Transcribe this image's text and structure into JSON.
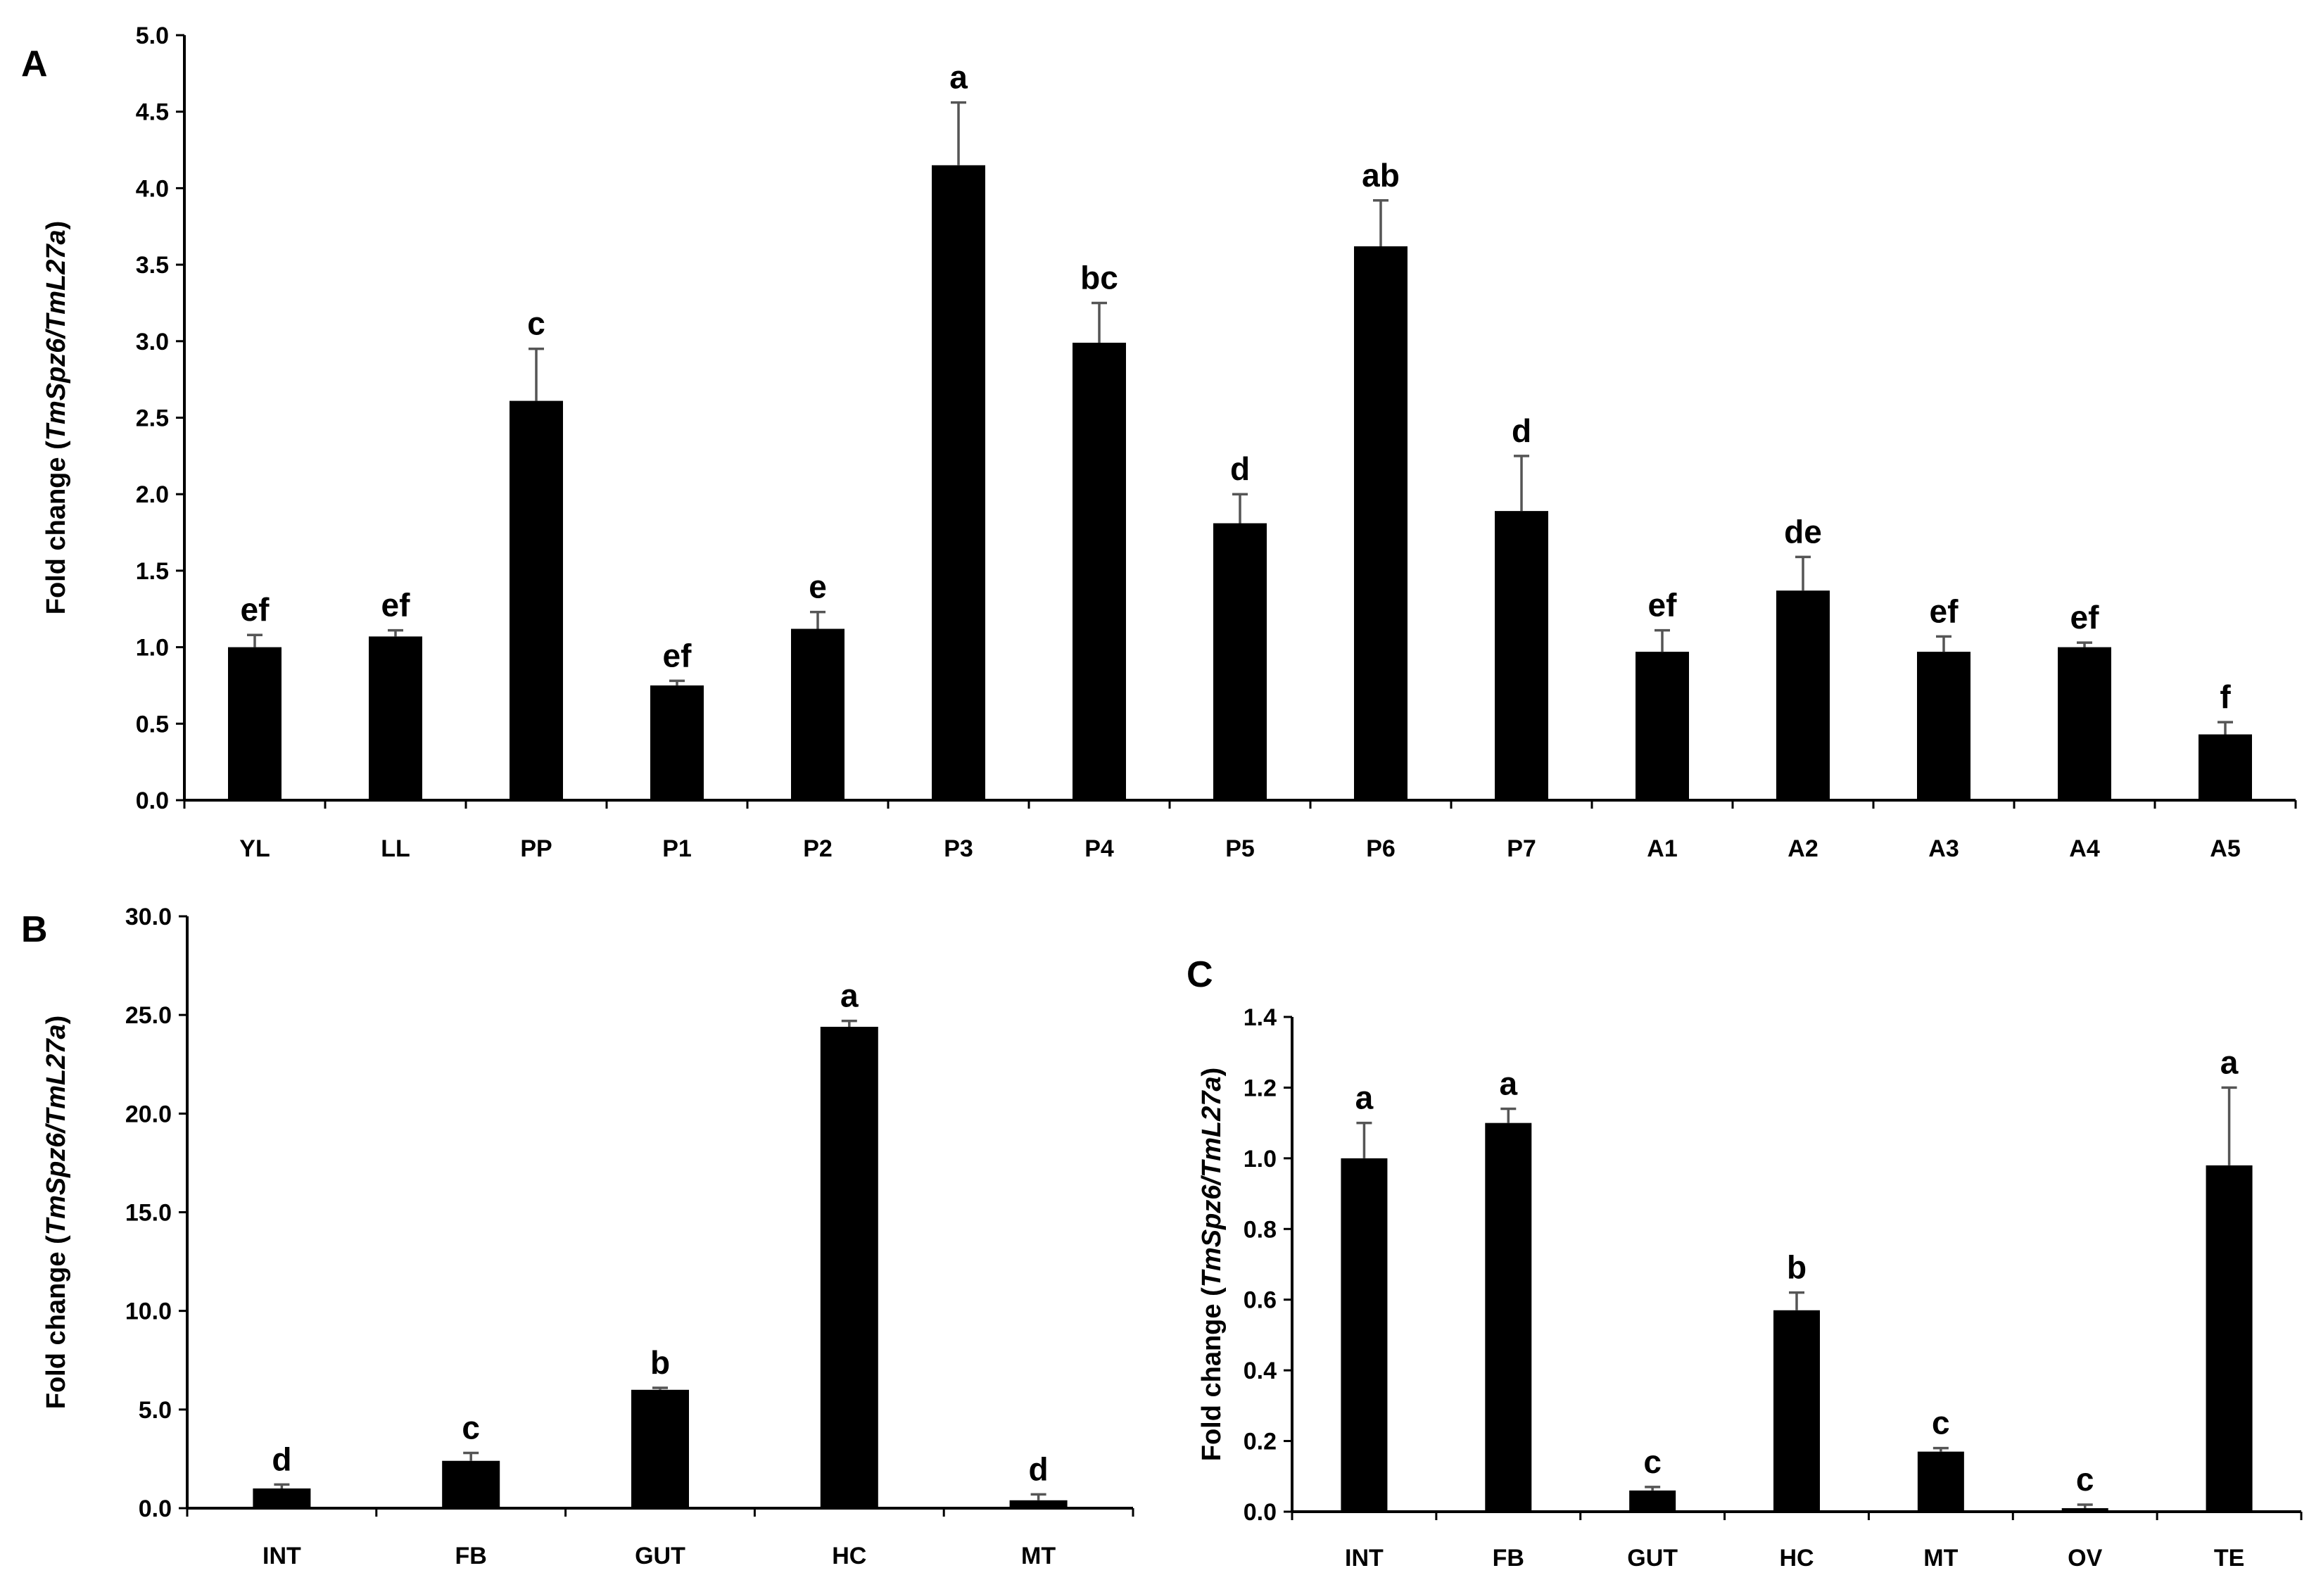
{
  "chart_data": [
    {
      "panel": "A",
      "type": "bar",
      "ylabel": {
        "prefix": "Fold change (",
        "gene": "TmSpz6/TmL27a",
        "suffix": ")"
      },
      "ylim": [
        0,
        5.0
      ],
      "yticks": [
        "0.0",
        "0.5",
        "1.0",
        "1.5",
        "2.0",
        "2.5",
        "3.0",
        "3.5",
        "4.0",
        "4.5",
        "5.0"
      ],
      "categories": [
        "YL",
        "LL",
        "PP",
        "P1",
        "P2",
        "P3",
        "P4",
        "P5",
        "P6",
        "P7",
        "A1",
        "A2",
        "A3",
        "A4",
        "A5"
      ],
      "values": [
        1.0,
        1.07,
        2.61,
        0.75,
        1.12,
        4.15,
        2.99,
        1.81,
        3.62,
        1.89,
        0.97,
        1.37,
        0.97,
        1.0,
        0.43
      ],
      "errors": [
        0.08,
        0.04,
        0.34,
        0.03,
        0.11,
        0.41,
        0.26,
        0.19,
        0.3,
        0.36,
        0.14,
        0.22,
        0.1,
        0.03,
        0.08
      ],
      "significance": [
        "ef",
        "ef",
        "c",
        "ef",
        "e",
        "a",
        "bc",
        "d",
        "ab",
        "d",
        "ef",
        "de",
        "ef",
        "ef",
        "f"
      ],
      "grid": false,
      "legend": "none"
    },
    {
      "panel": "B",
      "type": "bar",
      "ylabel": {
        "prefix": "Fold change (",
        "gene": "TmSpz6/TmL27a",
        "suffix": ")"
      },
      "ylim": [
        0,
        30.0
      ],
      "yticks": [
        "0.0",
        "5.0",
        "10.0",
        "15.0",
        "20.0",
        "25.0",
        "30.0"
      ],
      "categories": [
        "INT",
        "FB",
        "GUT",
        "HC",
        "MT"
      ],
      "values": [
        1.0,
        2.4,
        6.0,
        24.4,
        0.4
      ],
      "errors": [
        0.2,
        0.4,
        0.1,
        0.3,
        0.3
      ],
      "significance": [
        "d",
        "c",
        "b",
        "a",
        "d"
      ],
      "grid": false,
      "legend": "none"
    },
    {
      "panel": "C",
      "type": "bar",
      "ylabel": {
        "prefix": "Fold change (",
        "gene": "TmSpz6/TmL27a",
        "suffix": ")"
      },
      "ylim": [
        0,
        1.4
      ],
      "yticks": [
        "0.0",
        "0.2",
        "0.4",
        "0.6",
        "0.8",
        "1.0",
        "1.2",
        "1.4"
      ],
      "categories": [
        "INT",
        "FB",
        "GUT",
        "HC",
        "MT",
        "OV",
        "TE"
      ],
      "values": [
        1.0,
        1.1,
        0.06,
        0.57,
        0.17,
        0.01,
        0.98
      ],
      "errors": [
        0.1,
        0.04,
        0.01,
        0.05,
        0.01,
        0.01,
        0.22
      ],
      "significance": [
        "a",
        "a",
        "c",
        "b",
        "c",
        "c",
        "a"
      ],
      "grid": false,
      "legend": "none"
    }
  ]
}
